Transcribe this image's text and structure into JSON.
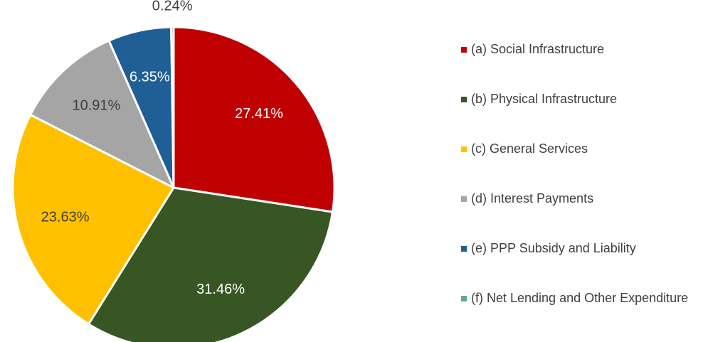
{
  "chart_data": {
    "type": "pie",
    "categories": [
      "(a) Social Infrastructure",
      "(b) Physical Infrastructure",
      "(c) General Services",
      "(d) Interest Payments",
      "(e) PPP Subsidy and Liability",
      "(f) Net Lending and Other Expenditure"
    ],
    "values": [
      27.41,
      31.46,
      23.63,
      10.91,
      6.35,
      0.24
    ],
    "value_labels": [
      "27.41%",
      "31.46%",
      "23.63%",
      "10.91%",
      "6.35%",
      "0.24%"
    ],
    "colors": [
      "#c00000",
      "#375623",
      "#ffc000",
      "#a5a5a5",
      "#1f5f96",
      "#5fa8a0"
    ],
    "legend": "right"
  }
}
